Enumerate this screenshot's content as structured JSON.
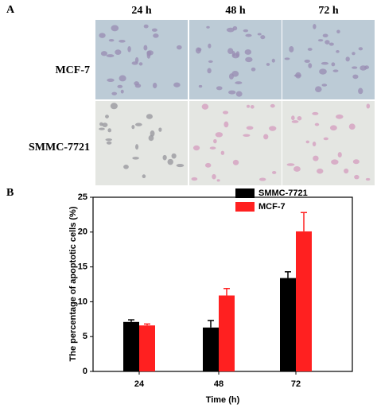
{
  "panel_a": {
    "label": "A",
    "columns": [
      "24 h",
      "48 h",
      "72 h"
    ],
    "rows": [
      "MCF-7",
      "SMMC-7721"
    ]
  },
  "panel_b": {
    "label": "B"
  },
  "chart_data": {
    "type": "bar",
    "ylabel": "The percentage of apoptotic cells (%)",
    "xlabel": "Time (h)",
    "categories": [
      "24",
      "48",
      "72"
    ],
    "series": [
      {
        "name": "SMMC-7721",
        "color": "#000000",
        "values": [
          7.1,
          6.3,
          13.4
        ],
        "errors": [
          0.3,
          1.0,
          0.9
        ]
      },
      {
        "name": "MCF-7",
        "color": "#ff2020",
        "values": [
          6.6,
          10.9,
          20.1
        ],
        "errors": [
          0.2,
          1.0,
          2.7
        ]
      }
    ],
    "ylim": [
      0,
      25
    ],
    "yticks": [
      0,
      5,
      10,
      15,
      20,
      25
    ],
    "legend": "top-right"
  }
}
